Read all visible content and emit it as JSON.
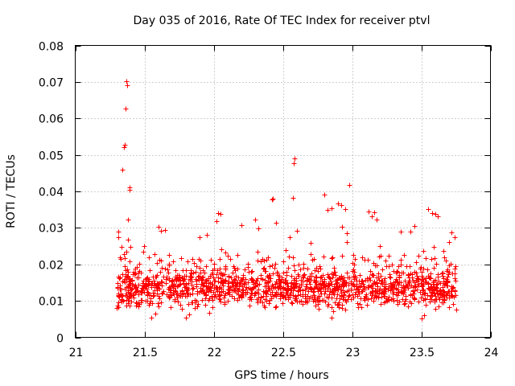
{
  "chart_data": {
    "type": "scatter",
    "title": "Day 035 of 2016, Rate Of TEC Index for receiver ptvl",
    "xlabel": "GPS time / hours",
    "ylabel": "ROTI / TECUs",
    "xlim": [
      21,
      24
    ],
    "ylim": [
      0,
      0.08
    ],
    "x_ticks": [
      21,
      21.5,
      22,
      22.5,
      23,
      23.5,
      24
    ],
    "x_tick_labels": [
      "21",
      "21.5",
      "22",
      "22.5",
      "23",
      "23.5",
      "24"
    ],
    "y_ticks": [
      0,
      0.01,
      0.02,
      0.03,
      0.04,
      0.05,
      0.06,
      0.07,
      0.08
    ],
    "y_tick_labels": [
      "0",
      "0.01",
      "0.02",
      "0.03",
      "0.04",
      "0.05",
      "0.06",
      "0.07",
      "0.08"
    ],
    "grid": true,
    "marker": "plus",
    "color": "#ff0000",
    "series": [
      {
        "name": "ROTI",
        "points": [
          [
            21.31,
            0.029
          ],
          [
            21.31,
            0.0275
          ],
          [
            21.32,
            0.022
          ],
          [
            21.33,
            0.0215
          ],
          [
            21.34,
            0.046
          ],
          [
            21.35,
            0.0522
          ],
          [
            21.355,
            0.0527
          ],
          [
            21.37,
            0.0702
          ],
          [
            21.375,
            0.069
          ],
          [
            21.365,
            0.0628
          ],
          [
            21.39,
            0.041
          ],
          [
            21.395,
            0.0404
          ],
          [
            21.38,
            0.0322
          ],
          [
            21.36,
            0.0218
          ],
          [
            21.37,
            0.0235
          ],
          [
            21.38,
            0.0268
          ],
          [
            21.4,
            0.0248
          ],
          [
            21.6,
            0.0303
          ],
          [
            21.62,
            0.0292
          ],
          [
            21.65,
            0.0295
          ],
          [
            21.9,
            0.0275
          ],
          [
            21.95,
            0.028
          ],
          [
            22.03,
            0.034
          ],
          [
            22.05,
            0.0338
          ],
          [
            22.02,
            0.0318
          ],
          [
            22.2,
            0.0308
          ],
          [
            22.3,
            0.0322
          ],
          [
            22.32,
            0.0298
          ],
          [
            22.42,
            0.0378
          ],
          [
            22.43,
            0.038
          ],
          [
            22.45,
            0.0315
          ],
          [
            22.55,
            0.0275
          ],
          [
            22.57,
            0.0382
          ],
          [
            22.58,
            0.0478
          ],
          [
            22.585,
            0.049
          ],
          [
            22.6,
            0.0293
          ],
          [
            22.8,
            0.0392
          ],
          [
            22.82,
            0.035
          ],
          [
            22.85,
            0.0353
          ],
          [
            22.9,
            0.0368
          ],
          [
            22.92,
            0.0362
          ],
          [
            22.95,
            0.0352
          ],
          [
            22.98,
            0.0418
          ],
          [
            22.93,
            0.0302
          ],
          [
            22.96,
            0.0285
          ],
          [
            23.12,
            0.0345
          ],
          [
            23.14,
            0.0332
          ],
          [
            23.16,
            0.0342
          ],
          [
            23.18,
            0.0322
          ],
          [
            23.2,
            0.025
          ],
          [
            23.35,
            0.029
          ],
          [
            23.42,
            0.029
          ],
          [
            23.45,
            0.0305
          ],
          [
            23.55,
            0.0352
          ],
          [
            23.58,
            0.034
          ],
          [
            23.6,
            0.0338
          ],
          [
            23.62,
            0.0332
          ],
          [
            23.7,
            0.0262
          ],
          [
            23.72,
            0.0288
          ],
          [
            23.74,
            0.0275
          ],
          [
            21.55,
            0.0055
          ],
          [
            21.58,
            0.0065
          ],
          [
            21.8,
            0.0055
          ],
          [
            21.82,
            0.0062
          ],
          [
            22.85,
            0.0055
          ],
          [
            22.95,
            0.0075
          ],
          [
            23.5,
            0.0052
          ],
          [
            23.52,
            0.006
          ],
          [
            23.75,
            0.0075
          ],
          [
            23.7,
            0.0082
          ]
        ]
      }
    ]
  }
}
